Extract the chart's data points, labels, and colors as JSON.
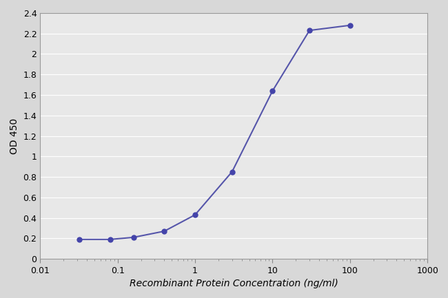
{
  "x_data": [
    0.032,
    0.08,
    0.16,
    0.4,
    1.0,
    3.0,
    10.0,
    30.0,
    100.0
  ],
  "y_data": [
    0.19,
    0.19,
    0.21,
    0.27,
    0.43,
    0.85,
    1.64,
    2.23,
    2.28
  ],
  "line_color": "#5555aa",
  "marker_color": "#4444aa",
  "marker_size": 5,
  "line_width": 1.5,
  "xlabel": "Recombinant Protein Concentration (ng/ml)",
  "ylabel": "OD 450",
  "xlim_log": [
    0.01,
    1000
  ],
  "ylim": [
    0,
    2.4
  ],
  "ytick_values": [
    0,
    0.2,
    0.4,
    0.6,
    0.8,
    1.0,
    1.2,
    1.4,
    1.6,
    1.8,
    2.0,
    2.2,
    2.4
  ],
  "ytick_labels": [
    "0",
    "0.2",
    "0.4",
    "0.6",
    "0.8",
    "1",
    "1.2",
    "1.4",
    "1.6",
    "1.8",
    "2",
    "2.2",
    "2.4"
  ],
  "xtick_values": [
    0.01,
    0.1,
    1,
    10,
    100,
    1000
  ],
  "xtick_labels": [
    "0.01",
    "0.1",
    "1",
    "10",
    "100",
    "1000"
  ],
  "background_color": "#d8d8d8",
  "plot_bg_color": "#e8e8e8",
  "grid_color": "#c8c8c8",
  "label_fontsize": 10,
  "tick_fontsize": 9
}
